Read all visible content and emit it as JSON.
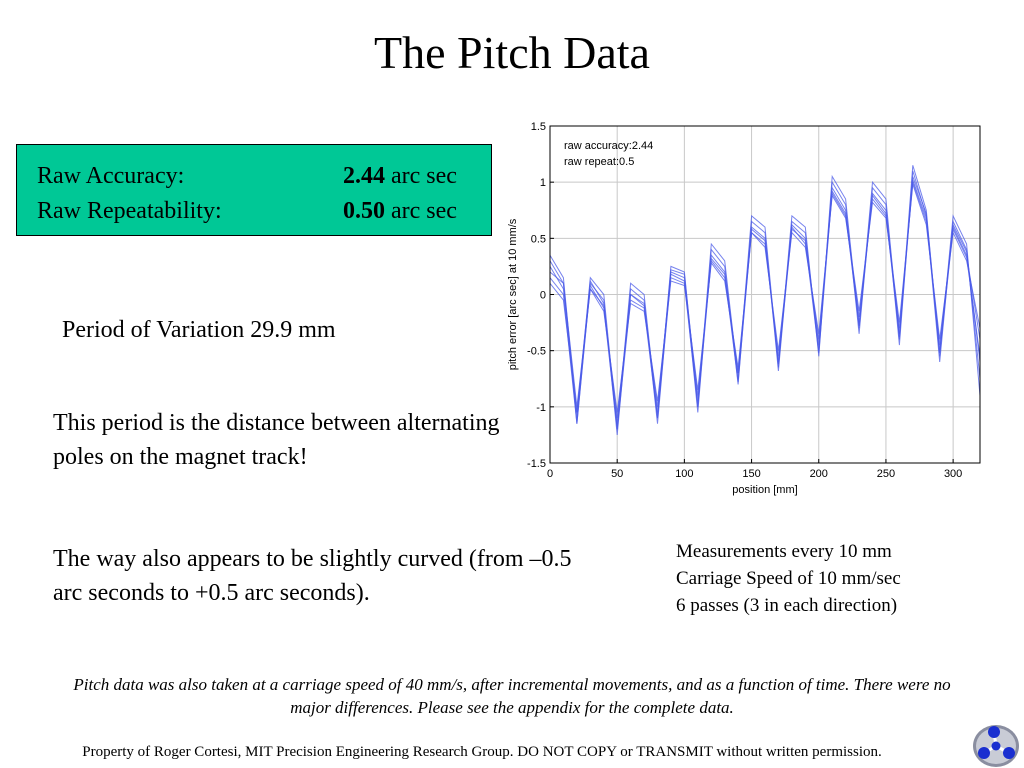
{
  "title": "The Pitch Data",
  "summary": {
    "rows": [
      {
        "label": "Raw Accuracy:",
        "value": "2.44",
        "unit": " arc sec"
      },
      {
        "label": "Raw Repeatability:",
        "value": "0.50",
        "unit": " arc sec"
      }
    ],
    "box_color": "#00c896"
  },
  "period_text": "Period of Variation 29.9 mm",
  "poles_text": "This period is the distance between alternating poles on the magnet track!",
  "curved_text": "The way also appears to be slightly curved (from –0.5 arc seconds to +0.5 arc seconds).",
  "measurements": [
    "Measurements every 10 mm",
    "Carriage Speed of 10 mm/sec",
    "6 passes (3 in each direction)"
  ],
  "note": "Pitch data was also taken at a carriage speed of 40 mm/s, after incremental movements, and as a function of time. There were no major differences.  Please see the appendix for the complete data.",
  "footer": "Property of Roger Cortesi, MIT Precision Engineering Research Group. DO NOT COPY or TRANSMIT without written permission.",
  "logo_icon": "molecule-logo-icon",
  "chart_data": {
    "type": "line",
    "xlabel": "position [mm]",
    "ylabel": "pitch error [arc sec] at 10 mm/s",
    "xlim": [
      0,
      320
    ],
    "ylim": [
      -1.5,
      1.5
    ],
    "xticks": [
      0,
      50,
      100,
      150,
      200,
      250,
      300
    ],
    "yticks": [
      -1.5,
      -1,
      -0.5,
      0,
      0.5,
      1,
      1.5
    ],
    "grid": true,
    "annotations": [
      "raw accuracy:2.44",
      "raw repeat:0.5"
    ],
    "series_color": "#4a5ae8",
    "x": [
      0,
      10,
      20,
      30,
      40,
      50,
      60,
      70,
      80,
      90,
      100,
      110,
      120,
      130,
      140,
      150,
      160,
      170,
      180,
      190,
      200,
      210,
      220,
      230,
      240,
      250,
      260,
      270,
      280,
      290,
      300,
      310,
      320
    ],
    "series": [
      {
        "values": [
          0.35,
          0.15,
          -1.1,
          0.15,
          0.0,
          -1.2,
          0.1,
          0.0,
          -1.1,
          0.25,
          0.2,
          -1.0,
          0.45,
          0.3,
          -0.75,
          0.7,
          0.6,
          -0.65,
          0.7,
          0.6,
          -0.55,
          1.05,
          0.85,
          -0.3,
          1.0,
          0.85,
          -0.4,
          1.15,
          0.75,
          -0.55,
          0.7,
          0.45,
          -0.9
        ]
      },
      {
        "values": [
          0.3,
          0.1,
          -1.15,
          0.1,
          -0.05,
          -1.25,
          0.05,
          -0.05,
          -1.15,
          0.2,
          0.15,
          -1.05,
          0.4,
          0.25,
          -0.8,
          0.65,
          0.55,
          -0.68,
          0.65,
          0.55,
          -0.5,
          1.0,
          0.8,
          -0.35,
          0.95,
          0.8,
          -0.45,
          1.1,
          0.7,
          -0.6,
          0.65,
          0.4,
          -0.75
        ]
      },
      {
        "values": [
          0.25,
          0.05,
          -1.05,
          0.12,
          -0.08,
          -1.15,
          0.0,
          -0.08,
          -1.05,
          0.22,
          0.18,
          -0.95,
          0.35,
          0.2,
          -0.7,
          0.6,
          0.5,
          -0.6,
          0.62,
          0.5,
          -0.45,
          0.95,
          0.75,
          -0.25,
          0.9,
          0.75,
          -0.35,
          1.05,
          0.72,
          -0.5,
          0.62,
          0.38,
          -0.6
        ]
      },
      {
        "values": [
          0.2,
          0.1,
          -1.0,
          0.05,
          -0.1,
          -1.1,
          0.0,
          -0.1,
          -1.0,
          0.18,
          0.12,
          -0.9,
          0.3,
          0.15,
          -0.7,
          0.55,
          0.45,
          -0.55,
          0.6,
          0.45,
          -0.4,
          0.9,
          0.7,
          -0.2,
          0.85,
          0.7,
          -0.3,
          1.0,
          0.65,
          -0.45,
          0.6,
          0.35,
          -0.4
        ]
      },
      {
        "values": [
          0.15,
          0.0,
          -1.15,
          0.08,
          -0.12,
          -1.2,
          -0.05,
          -0.12,
          -1.1,
          0.15,
          0.1,
          -1.0,
          0.32,
          0.18,
          -0.78,
          0.58,
          0.48,
          -0.62,
          0.58,
          0.48,
          -0.52,
          0.92,
          0.72,
          -0.28,
          0.88,
          0.72,
          -0.38,
          1.02,
          0.68,
          -0.52,
          0.58,
          0.33,
          -0.55
        ]
      },
      {
        "values": [
          0.1,
          -0.05,
          -1.05,
          0.05,
          -0.15,
          -1.05,
          -0.08,
          -0.15,
          -0.95,
          0.12,
          0.08,
          -0.85,
          0.28,
          0.12,
          -0.65,
          0.55,
          0.42,
          -0.5,
          0.55,
          0.42,
          -0.35,
          0.88,
          0.68,
          -0.15,
          0.82,
          0.68,
          -0.25,
          0.98,
          0.62,
          -0.4,
          0.55,
          0.3,
          -0.3
        ]
      }
    ]
  }
}
